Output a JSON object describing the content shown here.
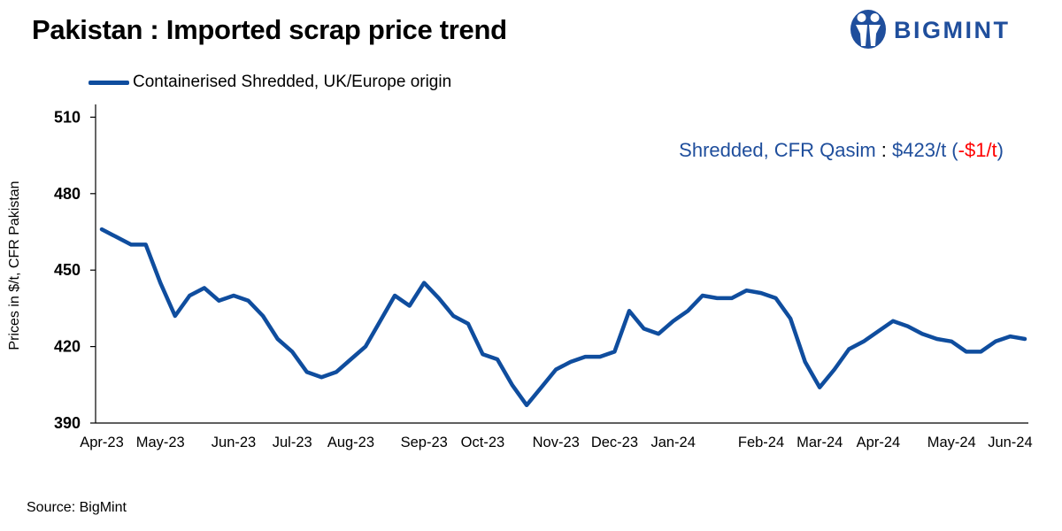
{
  "header": {
    "title": "Pakistan : Imported scrap price trend",
    "logo_text": "BIGMINT"
  },
  "annotation": {
    "label": "Shredded, CFR Qasim",
    "separator": " : ",
    "value": "$423/t (",
    "change": "-$1/t",
    "close": ")"
  },
  "source": "Source: BigMint",
  "colors": {
    "series": "#0f4d9e",
    "brand": "#1f4e9c",
    "negative_change": "#ff0000"
  },
  "chart_data": {
    "type": "line",
    "title": "Pakistan : Imported scrap price trend",
    "ylabel": "Prices in $/t, CFR Pakistan",
    "xlabel": "",
    "ylim": [
      390,
      515
    ],
    "yticks": [
      390,
      420,
      450,
      480,
      510
    ],
    "grid": false,
    "legend": "top-left",
    "x_tick_labels": [
      "Apr-23",
      "May-23",
      "Jun-23",
      "Jul-23",
      "Aug-23",
      "Sep-23",
      "Oct-23",
      "Nov-23",
      "Dec-23",
      "Jan-24",
      "Feb-24",
      "Mar-24",
      "Apr-24",
      "May-24",
      "Jun-24"
    ],
    "x_tick_positions": [
      0,
      4,
      9,
      13,
      17,
      22,
      26,
      31,
      35,
      39,
      45,
      49,
      53,
      58,
      62
    ],
    "series": [
      {
        "name": "Containerised Shredded, UK/Europe origin",
        "values": [
          466,
          463,
          460,
          460,
          445,
          432,
          440,
          443,
          438,
          440,
          438,
          432,
          423,
          418,
          410,
          408,
          410,
          415,
          420,
          430,
          440,
          436,
          445,
          439,
          432,
          429,
          417,
          415,
          405,
          397,
          404,
          411,
          414,
          416,
          416,
          418,
          434,
          427,
          425,
          430,
          434,
          440,
          439,
          439,
          442,
          441,
          439,
          431,
          414,
          404,
          411,
          419,
          422,
          426,
          430,
          428,
          425,
          423,
          422,
          418,
          418,
          422,
          424,
          423
        ]
      }
    ]
  }
}
